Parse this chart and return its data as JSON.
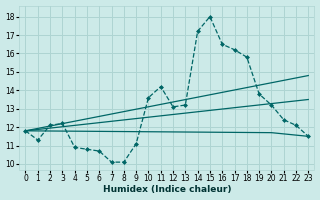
{
  "xlabel": "Humidex (Indice chaleur)",
  "ylabel": "",
  "bg_color": "#cceae8",
  "grid_color": "#aed4d2",
  "line_color": "#006666",
  "xlim": [
    -0.5,
    23.5
  ],
  "ylim": [
    9.7,
    18.6
  ],
  "xticks": [
    0,
    1,
    2,
    3,
    4,
    5,
    6,
    7,
    8,
    9,
    10,
    11,
    12,
    13,
    14,
    15,
    16,
    17,
    18,
    19,
    20,
    21,
    22,
    23
  ],
  "yticks": [
    10,
    11,
    12,
    13,
    14,
    15,
    16,
    17,
    18
  ],
  "line1_x": [
    0,
    1,
    2,
    3,
    4,
    5,
    6,
    7,
    8,
    9,
    10,
    11,
    12,
    13,
    14,
    15,
    16,
    17,
    18,
    19,
    20,
    21,
    22,
    23
  ],
  "line1_y": [
    11.8,
    11.3,
    12.1,
    12.2,
    10.9,
    10.8,
    10.7,
    10.1,
    10.1,
    11.1,
    13.6,
    14.2,
    13.1,
    13.2,
    17.2,
    18.0,
    16.5,
    16.2,
    15.8,
    13.8,
    13.2,
    12.4,
    12.1,
    11.5
  ],
  "line2_x": [
    0,
    23
  ],
  "line2_y": [
    11.8,
    14.8
  ],
  "line3_x": [
    0,
    23
  ],
  "line3_y": [
    11.8,
    13.5
  ],
  "line4_x": [
    0,
    20,
    23
  ],
  "line4_y": [
    11.8,
    11.7,
    11.5
  ]
}
